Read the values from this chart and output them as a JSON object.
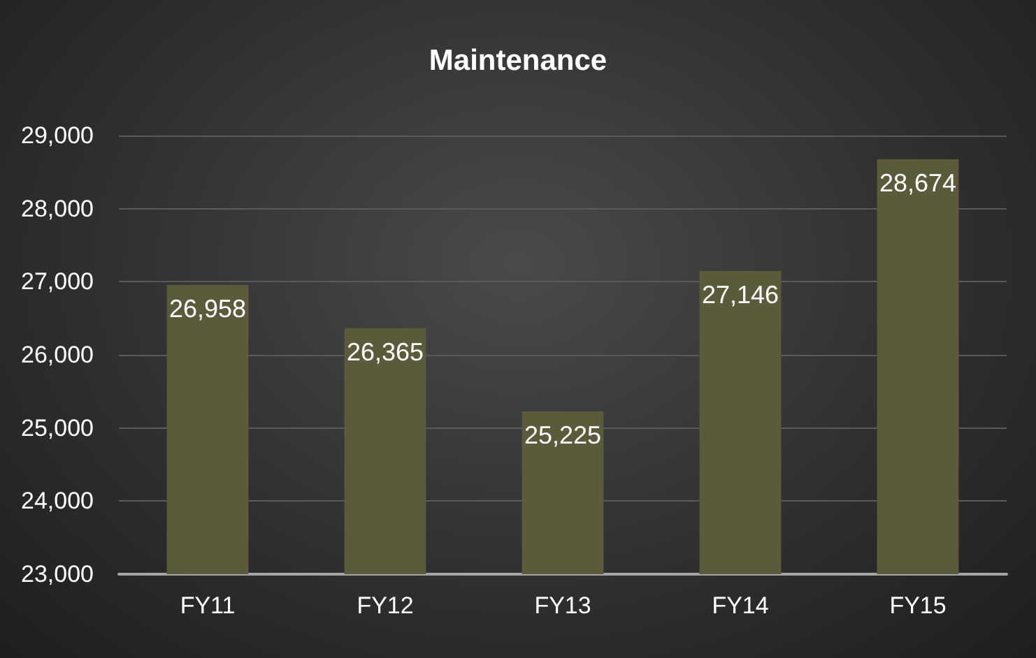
{
  "chart_data": {
    "type": "bar",
    "title": "Maintenance",
    "categories": [
      "FY11",
      "FY12",
      "FY13",
      "FY14",
      "FY15"
    ],
    "values": [
      26958,
      26365,
      25225,
      27146,
      28674
    ],
    "value_labels": [
      "26,958",
      "26,365",
      "25,225",
      "27,146",
      "28,674"
    ],
    "color": "#5b5a3a",
    "ylim": [
      23000,
      29000
    ],
    "yticks": [
      {
        "value": 23000,
        "label": "23,000"
      },
      {
        "value": 24000,
        "label": "24,000"
      },
      {
        "value": 25000,
        "label": "25,000"
      },
      {
        "value": 26000,
        "label": "26,000"
      },
      {
        "value": 27000,
        "label": "27,000"
      },
      {
        "value": 28000,
        "label": "28,000"
      },
      {
        "value": 29000,
        "label": "29,000"
      }
    ],
    "grid": "y"
  }
}
